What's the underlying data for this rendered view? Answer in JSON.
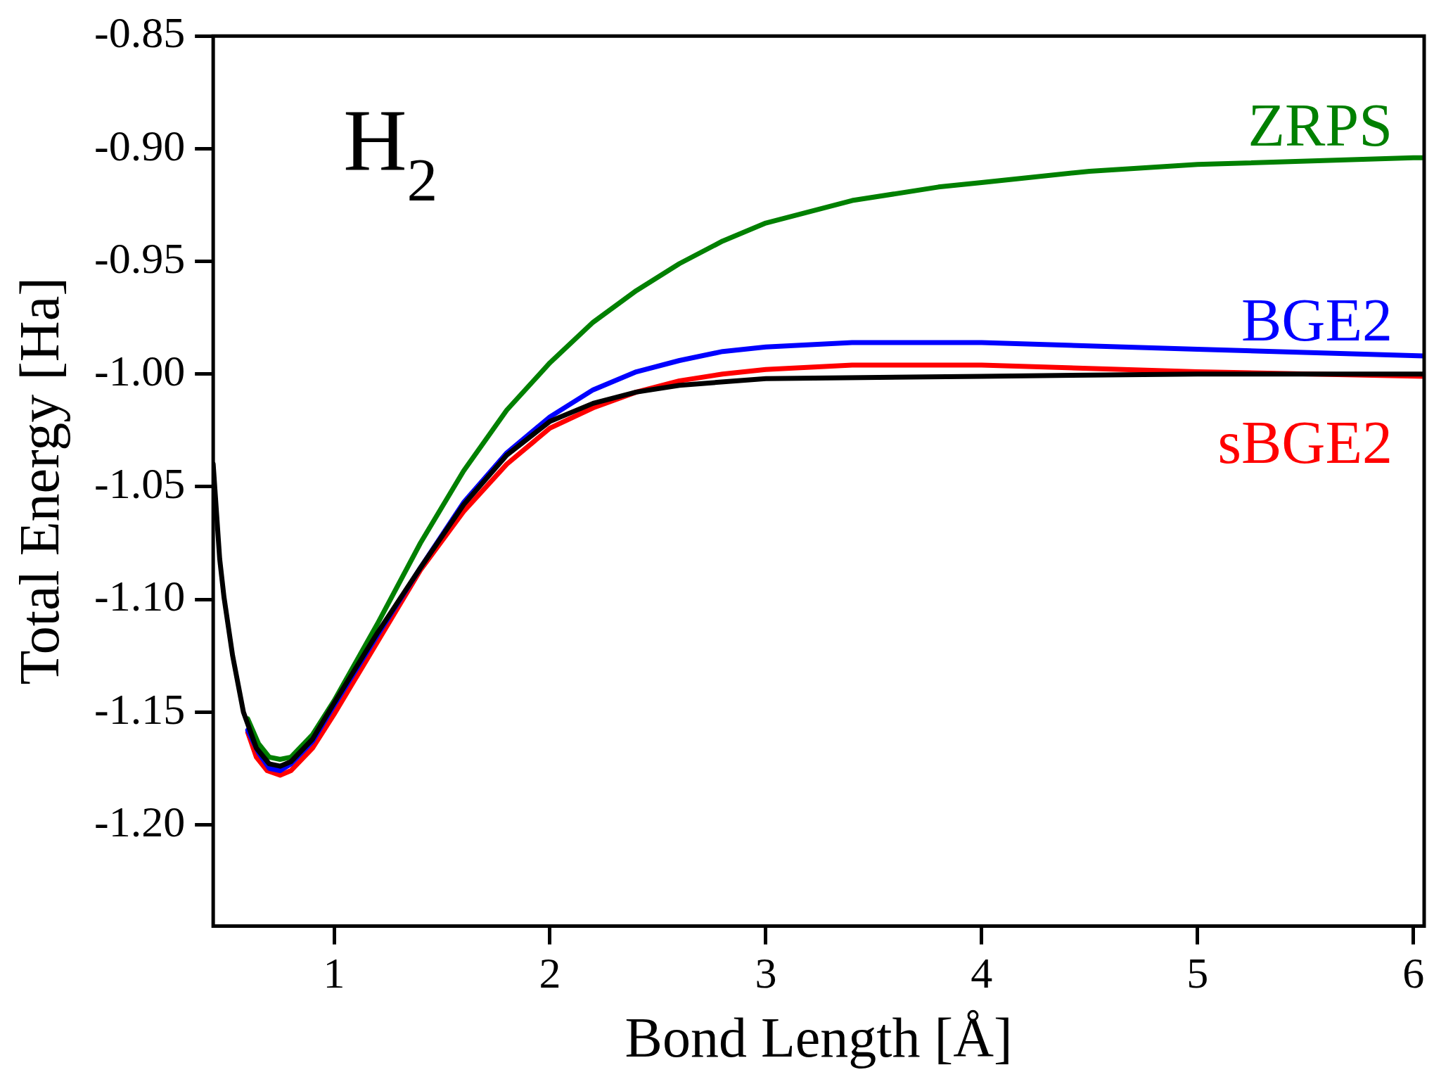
{
  "chart_data": {
    "type": "line",
    "xlabel": "Bond Length [Å]",
    "ylabel": "Total Energy [Ha]",
    "annotations": [
      "H$_{2}$"
    ],
    "xlim": [
      0.44,
      6.05
    ],
    "ylim": [
      -1.245,
      -0.85
    ],
    "xticks": [
      1,
      2,
      3,
      4,
      5,
      6
    ],
    "yticks": [
      {
        "value": -1.2,
        "label": "-1.20"
      },
      {
        "value": -1.15,
        "label": "-1.15"
      },
      {
        "value": -1.1,
        "label": "-1.10"
      },
      {
        "value": -1.05,
        "label": "-1.05"
      },
      {
        "value": -1.0,
        "label": "-1.00"
      },
      {
        "value": -0.95,
        "label": "-0.95"
      },
      {
        "value": -0.9,
        "label": "-0.90"
      },
      {
        "value": -0.85,
        "label": "-0.85"
      }
    ],
    "grid": false,
    "legend": false,
    "marker": "none",
    "line_style": "solid",
    "series": [
      {
        "color": "#000000",
        "x": [
          0.44,
          0.47,
          0.49,
          0.53,
          0.58,
          0.64,
          0.7,
          0.75,
          0.8,
          0.9,
          1.0,
          1.2,
          1.4,
          1.6,
          1.8,
          2.0,
          2.2,
          2.4,
          2.6,
          3.0,
          4.0,
          5.0,
          6.05
        ],
        "values": [
          -1.04,
          -1.082,
          -1.099,
          -1.125,
          -1.15,
          -1.166,
          -1.173,
          -1.174,
          -1.172,
          -1.162,
          -1.146,
          -1.115,
          -1.086,
          -1.058,
          -1.036,
          -1.021,
          -1.013,
          -1.008,
          -1.005,
          -1.002,
          -1.001,
          -1.0,
          -1.0
        ]
      },
      {
        "name": "ZRPS",
        "color": "#008000",
        "x": [
          0.6,
          0.65,
          0.7,
          0.75,
          0.8,
          0.9,
          1.0,
          1.2,
          1.4,
          1.6,
          1.8,
          2.0,
          2.2,
          2.4,
          2.6,
          2.8,
          3.0,
          3.4,
          3.8,
          4.0,
          4.5,
          5.0,
          6.0,
          6.05
        ],
        "values": [
          -1.153,
          -1.164,
          -1.17,
          -1.171,
          -1.17,
          -1.16,
          -1.145,
          -1.111,
          -1.075,
          -1.043,
          -1.016,
          -0.995,
          -0.977,
          -0.963,
          -0.951,
          -0.941,
          -0.933,
          -0.923,
          -0.917,
          -0.915,
          -0.91,
          -0.907,
          -0.904,
          -0.904
        ]
      },
      {
        "name": "BGE2",
        "color": "#0000ff",
        "x": [
          0.6,
          0.65,
          0.7,
          0.75,
          0.8,
          0.9,
          1.0,
          1.2,
          1.4,
          1.6,
          1.8,
          2.0,
          2.2,
          2.4,
          2.6,
          2.8,
          3.0,
          3.4,
          3.8,
          4.0,
          5.0,
          6.05
        ],
        "values": [
          -1.158,
          -1.168,
          -1.175,
          -1.176,
          -1.173,
          -1.163,
          -1.147,
          -1.116,
          -1.086,
          -1.057,
          -1.035,
          -1.019,
          -1.007,
          -0.999,
          -0.994,
          -0.99,
          -0.988,
          -0.986,
          -0.986,
          -0.986,
          -0.989,
          -0.992
        ]
      },
      {
        "name": "sBGE2",
        "color": "#ff0000",
        "x": [
          0.6,
          0.64,
          0.69,
          0.75,
          0.8,
          0.9,
          1.0,
          1.2,
          1.4,
          1.6,
          1.8,
          2.0,
          2.2,
          2.4,
          2.6,
          2.8,
          3.0,
          3.4,
          4.0,
          5.0,
          6.05
        ],
        "values": [
          -1.159,
          -1.17,
          -1.176,
          -1.178,
          -1.176,
          -1.166,
          -1.151,
          -1.119,
          -1.087,
          -1.061,
          -1.04,
          -1.024,
          -1.015,
          -1.008,
          -1.003,
          -1.0,
          -0.998,
          -0.996,
          -0.996,
          -0.999,
          -1.001
        ]
      }
    ]
  }
}
